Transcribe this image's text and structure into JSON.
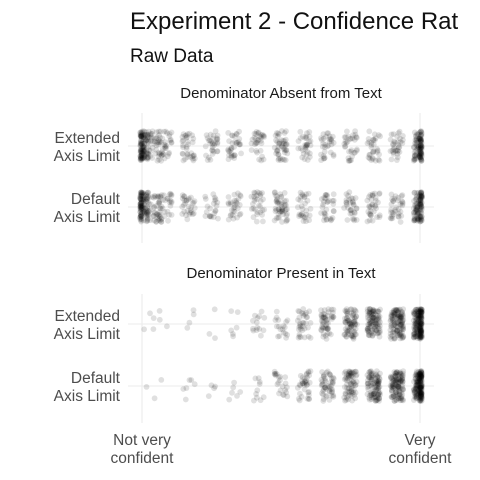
{
  "chart_data": {
    "type": "scatter",
    "title": "Experiment 2 - Confidence Rat",
    "subtitle": "Raw Data",
    "xlabel": "",
    "ylabel": "",
    "x_tick_labels": [
      [
        "Not very",
        "confident"
      ],
      [
        "Very",
        "confident"
      ]
    ],
    "xlim": [
      1,
      7
    ],
    "grid": true,
    "legend": "none",
    "point_color": "#000000",
    "point_alpha": 0.12,
    "panels": [
      {
        "name": "Denominator Absent from Text",
        "rows": [
          {
            "category_lines": [
              "Extended",
              "Axis Limit"
            ],
            "value_distribution": [
              {
                "value": 1.0,
                "count": 110
              },
              {
                "value": 1.25,
                "count": 40
              },
              {
                "value": 1.5,
                "count": 36
              },
              {
                "value": 2.0,
                "count": 34
              },
              {
                "value": 2.5,
                "count": 32
              },
              {
                "value": 3.0,
                "count": 34
              },
              {
                "value": 3.5,
                "count": 32
              },
              {
                "value": 4.0,
                "count": 46
              },
              {
                "value": 4.5,
                "count": 32
              },
              {
                "value": 5.0,
                "count": 32
              },
              {
                "value": 5.5,
                "count": 32
              },
              {
                "value": 6.0,
                "count": 32
              },
              {
                "value": 6.5,
                "count": 34
              },
              {
                "value": 7.0,
                "count": 110
              }
            ]
          },
          {
            "category_lines": [
              "Default",
              "Axis Limit"
            ],
            "value_distribution": [
              {
                "value": 1.0,
                "count": 110
              },
              {
                "value": 1.25,
                "count": 40
              },
              {
                "value": 1.5,
                "count": 34
              },
              {
                "value": 2.0,
                "count": 30
              },
              {
                "value": 2.5,
                "count": 22
              },
              {
                "value": 3.0,
                "count": 30
              },
              {
                "value": 3.5,
                "count": 30
              },
              {
                "value": 4.0,
                "count": 50
              },
              {
                "value": 4.5,
                "count": 30
              },
              {
                "value": 5.0,
                "count": 32
              },
              {
                "value": 5.5,
                "count": 32
              },
              {
                "value": 6.0,
                "count": 34
              },
              {
                "value": 6.5,
                "count": 34
              },
              {
                "value": 7.0,
                "count": 110
              }
            ]
          }
        ]
      },
      {
        "name": "Denominator Present in Text",
        "rows": [
          {
            "category_lines": [
              "Extended",
              "Axis Limit"
            ],
            "value_distribution": [
              {
                "value": 1.0,
                "count": 1
              },
              {
                "value": 1.25,
                "count": 4
              },
              {
                "value": 1.5,
                "count": 2
              },
              {
                "value": 2.0,
                "count": 4
              },
              {
                "value": 2.5,
                "count": 3
              },
              {
                "value": 3.0,
                "count": 6
              },
              {
                "value": 3.5,
                "count": 14
              },
              {
                "value": 4.0,
                "count": 18
              },
              {
                "value": 4.5,
                "count": 34
              },
              {
                "value": 5.0,
                "count": 50
              },
              {
                "value": 5.5,
                "count": 75
              },
              {
                "value": 6.0,
                "count": 100
              },
              {
                "value": 6.5,
                "count": 120
              },
              {
                "value": 7.0,
                "count": 180
              }
            ]
          },
          {
            "category_lines": [
              "Default",
              "Axis Limit"
            ],
            "value_distribution": [
              {
                "value": 1.0,
                "count": 1
              },
              {
                "value": 1.25,
                "count": 1
              },
              {
                "value": 1.5,
                "count": 1
              },
              {
                "value": 2.0,
                "count": 6
              },
              {
                "value": 2.5,
                "count": 4
              },
              {
                "value": 3.0,
                "count": 6
              },
              {
                "value": 3.5,
                "count": 10
              },
              {
                "value": 4.0,
                "count": 22
              },
              {
                "value": 4.5,
                "count": 36
              },
              {
                "value": 5.0,
                "count": 50
              },
              {
                "value": 5.5,
                "count": 70
              },
              {
                "value": 6.0,
                "count": 100
              },
              {
                "value": 6.5,
                "count": 120
              },
              {
                "value": 7.0,
                "count": 180
              }
            ]
          }
        ]
      }
    ]
  }
}
